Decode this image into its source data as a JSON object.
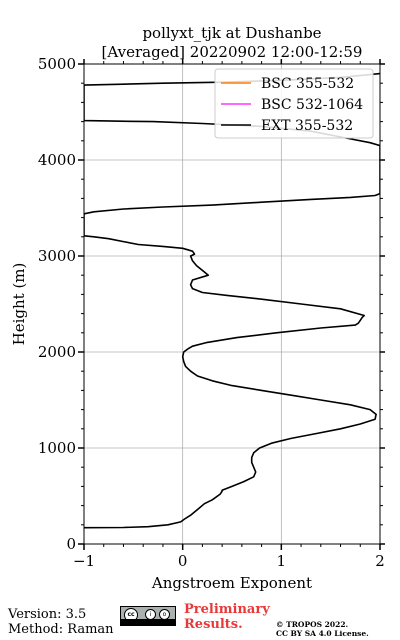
{
  "chart_data": {
    "type": "line",
    "title": "pollyxt_tjk at Dushanbe",
    "subtitle": "[Averaged] 20220902 12:00-12:59",
    "xlabel": "Angstroem Exponent",
    "ylabel": "Height (m)",
    "xlim": [
      -1,
      2
    ],
    "ylim": [
      0,
      5000
    ],
    "xticks": [
      "−1",
      "0",
      "1",
      "2"
    ],
    "yticks": [
      "0",
      "1000",
      "2000",
      "3000",
      "4000",
      "5000"
    ],
    "grid": true,
    "legend_position": "top-right",
    "series": [
      {
        "name": "BSC 355-532",
        "color": "#ff7f0e",
        "x": [],
        "y": []
      },
      {
        "name": "BSC 532-1064",
        "color": "#ff33ff",
        "x": [],
        "y": []
      },
      {
        "name": "EXT 355-532",
        "color": "#000000",
        "x": [
          -1.0,
          -0.6,
          -0.35,
          -0.15,
          -0.02,
          0.02,
          0.08,
          0.14,
          0.22,
          0.3,
          0.38,
          0.4,
          0.4,
          0.5,
          0.62,
          0.72,
          0.74,
          0.72,
          0.7,
          0.7,
          0.72,
          0.78,
          0.9,
          1.1,
          1.35,
          1.6,
          1.8,
          1.95,
          1.96,
          1.9,
          1.7,
          1.4,
          1.1,
          0.8,
          0.5,
          0.3,
          0.15,
          0.08,
          0.03,
          0.01,
          0.0,
          0.01,
          0.05,
          0.1,
          0.25,
          0.55,
          0.95,
          1.4,
          1.75,
          1.78,
          1.8,
          1.82,
          1.84,
          1.6,
          1.2,
          0.8,
          0.45,
          0.2,
          0.1,
          0.08,
          0.1,
          0.26,
          0.2,
          0.14,
          0.1,
          0.08,
          0.12,
          0.1,
          0.0,
          -0.2,
          -0.45,
          -0.6,
          -0.75,
          -0.9,
          -1.0,
          -1.0,
          -0.9,
          -0.6,
          -0.2,
          0.3,
          0.8,
          1.3,
          1.7,
          1.95,
          2.0,
          2.0,
          1.9,
          1.7,
          1.3,
          0.8,
          0.2,
          -0.3,
          -0.7,
          -1.0,
          -1.0,
          -0.6,
          -0.2,
          0.4,
          1.0,
          1.6,
          2.0
        ],
        "y": [
          170,
          172,
          180,
          200,
          230,
          260,
          300,
          350,
          420,
          460,
          520,
          550,
          560,
          600,
          650,
          700,
          750,
          800,
          850,
          900,
          950,
          1000,
          1050,
          1100,
          1150,
          1200,
          1250,
          1300,
          1350,
          1400,
          1450,
          1500,
          1550,
          1600,
          1650,
          1700,
          1750,
          1800,
          1850,
          1900,
          1950,
          2000,
          2030,
          2060,
          2100,
          2150,
          2200,
          2250,
          2280,
          2300,
          2330,
          2360,
          2380,
          2450,
          2500,
          2550,
          2590,
          2620,
          2660,
          2700,
          2750,
          2800,
          2850,
          2900,
          2950,
          3000,
          3020,
          3050,
          3080,
          3100,
          3120,
          3150,
          3180,
          3200,
          3210,
          3440,
          3460,
          3490,
          3510,
          3530,
          3560,
          3590,
          3610,
          3630,
          3650,
          4150,
          4180,
          4220,
          4300,
          4350,
          4380,
          4400,
          4405,
          4410,
          4780,
          4790,
          4800,
          4810,
          4830,
          4860,
          4900
        ]
      }
    ]
  },
  "footer": {
    "version": "Version: 3.5",
    "method": "Method: Raman",
    "preliminary_line1": "Preliminary",
    "preliminary_line2": "Results.",
    "copyright_line1": "© TROPOS 2022.",
    "copyright_line2": "CC BY SA 4.0 License.",
    "license_logo": "cc-by-sa-icon"
  }
}
